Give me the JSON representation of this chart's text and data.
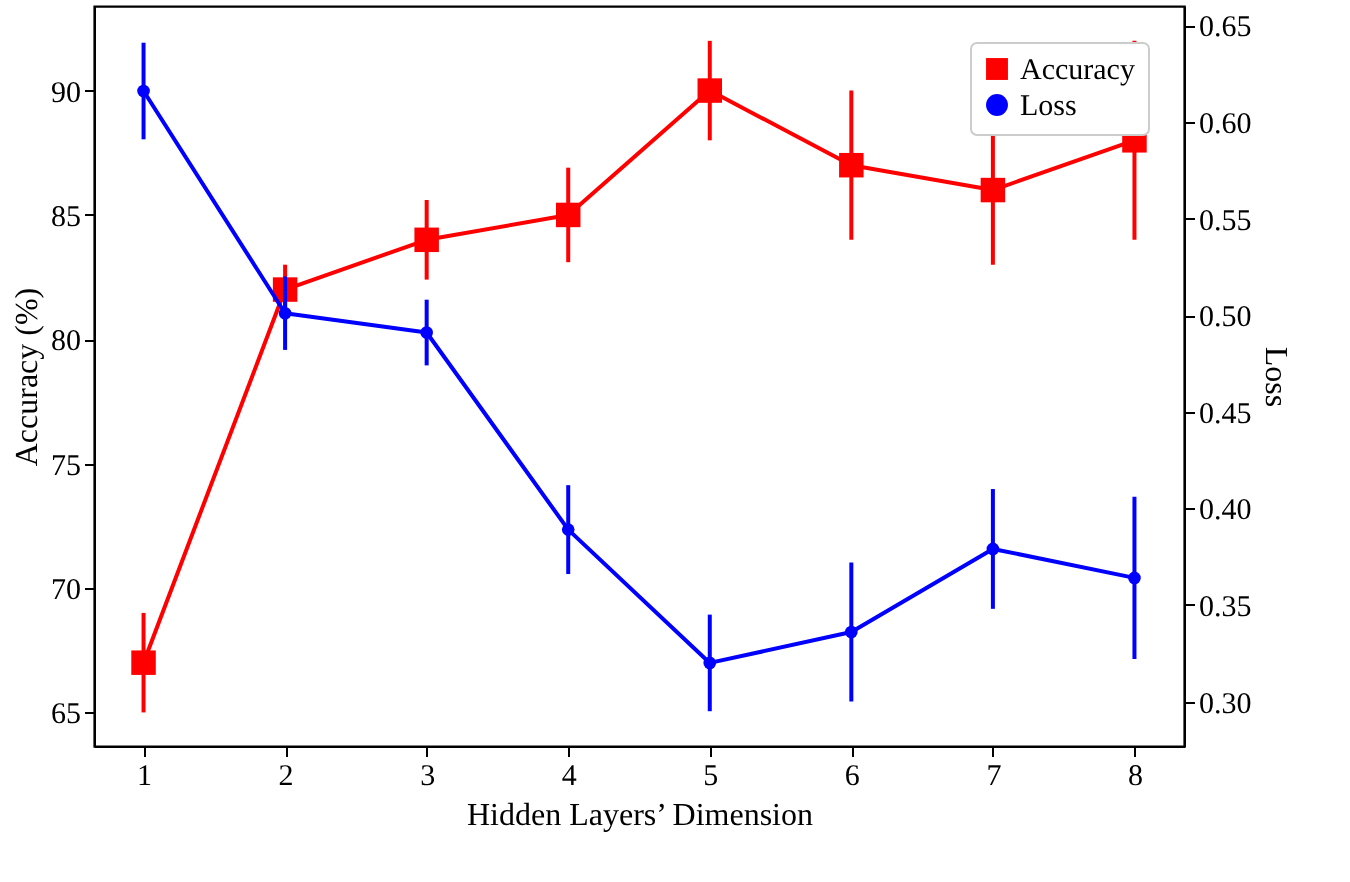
{
  "chart_data": {
    "type": "line",
    "xlabel": "Hidden Layers’ Dimension",
    "ylabel": "Accuracy (%)",
    "y2label": "Loss",
    "x": [
      1,
      2,
      3,
      4,
      5,
      6,
      7,
      8
    ],
    "series": [
      {
        "name": "Accuracy",
        "color": "#ff0000",
        "marker": "square",
        "values": [
          67,
          82,
          84,
          85,
          90,
          87,
          86,
          88
        ],
        "errors": [
          2,
          1,
          1.6,
          1.9,
          2,
          3,
          3,
          4
        ]
      },
      {
        "name": "Loss",
        "color": "#0000ff",
        "marker": "circle",
        "axis": "y2",
        "values": [
          0.616,
          0.501,
          0.491,
          0.389,
          0.32,
          0.336,
          0.379,
          0.364
        ],
        "errors": [
          0.025,
          0.019,
          0.017,
          0.023,
          0.025,
          0.036,
          0.031,
          0.042
        ]
      }
    ],
    "xlim": [
      0.65,
      8.35
    ],
    "xticks": [
      1,
      2,
      3,
      4,
      5,
      6,
      7,
      8
    ],
    "ylim": [
      63.65,
      93.4
    ],
    "yticks": [
      65,
      70,
      75,
      80,
      85,
      90
    ],
    "y2lim": [
      0.277,
      0.66
    ],
    "y2ticks": [
      {
        "value": 0.3,
        "label": "0.30"
      },
      0.35,
      {
        "value": 0.4,
        "label": "0.40"
      },
      0.45,
      {
        "value": 0.5,
        "label": "0.50"
      },
      0.55,
      {
        "value": 0.6,
        "label": "0.60"
      },
      0.65
    ],
    "grid": false,
    "legend": "top right",
    "line_style": "solid"
  }
}
